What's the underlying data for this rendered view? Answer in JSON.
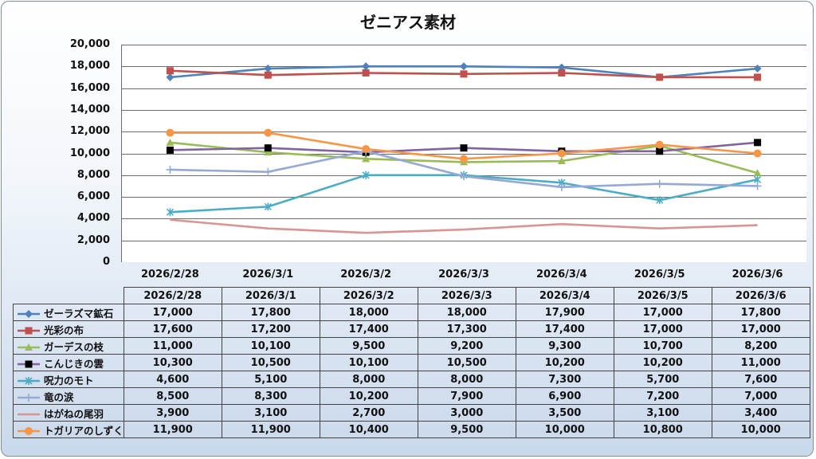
{
  "chart_data": {
    "type": "line",
    "title": "ゼニアス素材",
    "categories": [
      "2026/2/28",
      "2026/3/1",
      "2026/3/2",
      "2026/3/3",
      "2026/3/4",
      "2026/3/5",
      "2026/3/6"
    ],
    "ylim": [
      0,
      20000
    ],
    "yticks": [
      "20,000",
      "18,000",
      "16,000",
      "14,000",
      "12,000",
      "10,000",
      "8,000",
      "6,000",
      "4,000",
      "2,000",
      "0"
    ],
    "ytick_values": [
      20000,
      18000,
      16000,
      14000,
      12000,
      10000,
      8000,
      6000,
      4000,
      2000,
      0
    ],
    "grid": true,
    "legend_placement": "data-table",
    "series": [
      {
        "name": "ゼーラズマ鉱石",
        "color": "#4f81bd",
        "marker": "diamond",
        "values": [
          17000,
          17800,
          18000,
          18000,
          17900,
          17000,
          17800
        ],
        "labels": [
          "17,000",
          "17,800",
          "18,000",
          "18,000",
          "17,900",
          "17,000",
          "17,800"
        ]
      },
      {
        "name": "光彩の布",
        "color": "#c0504d",
        "marker": "square",
        "values": [
          17600,
          17200,
          17400,
          17300,
          17400,
          17000,
          17000
        ],
        "labels": [
          "17,600",
          "17,200",
          "17,400",
          "17,300",
          "17,400",
          "17,000",
          "17,000"
        ]
      },
      {
        "name": "ガーデスの枝",
        "color": "#9bbb59",
        "marker": "triangle",
        "values": [
          11000,
          10100,
          9500,
          9200,
          9300,
          10700,
          8200
        ],
        "labels": [
          "11,000",
          "10,100",
          "9,500",
          "9,200",
          "9,300",
          "10,700",
          "8,200"
        ]
      },
      {
        "name": "こんじきの雲",
        "color": "#8064a2",
        "markerColor": "#000000",
        "marker": "square-black",
        "values": [
          10300,
          10500,
          10100,
          10500,
          10200,
          10200,
          11000
        ],
        "labels": [
          "10,300",
          "10,500",
          "10,100",
          "10,500",
          "10,200",
          "10,200",
          "11,000"
        ]
      },
      {
        "name": "呪力のモト",
        "color": "#4bacc6",
        "marker": "star",
        "values": [
          4600,
          5100,
          8000,
          8000,
          7300,
          5700,
          7600
        ],
        "labels": [
          "4,600",
          "5,100",
          "8,000",
          "8,000",
          "7,300",
          "5,700",
          "7,600"
        ]
      },
      {
        "name": "竜の涙",
        "color": "#94a9d4",
        "marker": "plus",
        "values": [
          8500,
          8300,
          10200,
          7900,
          6900,
          7200,
          7000
        ],
        "labels": [
          "8,500",
          "8,300",
          "10,200",
          "7,900",
          "6,900",
          "7,200",
          "7,000"
        ]
      },
      {
        "name": "はがねの尾羽",
        "color": "#d99594",
        "marker": "none",
        "values": [
          3900,
          3100,
          2700,
          3000,
          3500,
          3100,
          3400
        ],
        "labels": [
          "3,900",
          "3,100",
          "2,700",
          "3,000",
          "3,500",
          "3,100",
          "3,400"
        ]
      },
      {
        "name": "トガリアのしずく",
        "color": "#f79646",
        "marker": "circle",
        "values": [
          11900,
          11900,
          10400,
          9500,
          10000,
          10800,
          10000
        ],
        "labels": [
          "11,900",
          "11,900",
          "10,400",
          "9,500",
          "10,000",
          "10,800",
          "10,000"
        ]
      }
    ]
  }
}
